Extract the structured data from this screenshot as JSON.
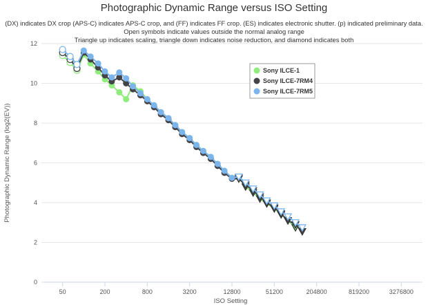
{
  "chart_data": {
    "type": "line",
    "title": "Photographic Dynamic Range versus ISO Setting",
    "subtitle": [
      "(DX) indicates DX crop (APS-C) indicates APS-C crop, and (FF) indicates FF crop. (ES) indicates electronic shutter. (p) indicated preliminary data.",
      "Open symbols indicate values outside the normal analog range",
      "Triangle up indicates scaling, triangle down indicates noise reduction, and diamond indicates both"
    ],
    "xlabel": "ISO Setting",
    "ylabel": "Photographic Dynamic Range (log2(EV))",
    "x_scale": "log2",
    "x_ticks": [
      50,
      200,
      800,
      3200,
      12800,
      51200,
      204800,
      819200,
      3276800
    ],
    "xlim": [
      25,
      6553600
    ],
    "ylim": [
      0,
      12
    ],
    "y_ticks": [
      0,
      2,
      4,
      6,
      8,
      10,
      12
    ],
    "grid": "horizontal",
    "legend_position": "top-right",
    "series": [
      {
        "name": "Sony ILCE-1",
        "color": "#90ed7d",
        "points": [
          {
            "x": 50,
            "y": 11.4,
            "marker": "circle-open"
          },
          {
            "x": 64,
            "y": 11.05,
            "marker": "circle-open"
          },
          {
            "x": 80,
            "y": 10.65,
            "marker": "circle-open"
          },
          {
            "x": 100,
            "y": 11.45,
            "marker": "circle"
          },
          {
            "x": 125,
            "y": 11.0,
            "marker": "circle"
          },
          {
            "x": 160,
            "y": 10.6,
            "marker": "circle"
          },
          {
            "x": 200,
            "y": 10.2,
            "marker": "circle"
          },
          {
            "x": 250,
            "y": 9.9,
            "marker": "circle"
          },
          {
            "x": 320,
            "y": 9.55,
            "marker": "circle"
          },
          {
            "x": 400,
            "y": 9.2,
            "marker": "circle"
          },
          {
            "x": 500,
            "y": 9.9,
            "marker": "circle"
          },
          {
            "x": 640,
            "y": 9.6,
            "marker": "circle"
          },
          {
            "x": 800,
            "y": 9.2,
            "marker": "circle"
          },
          {
            "x": 1000,
            "y": 8.85,
            "marker": "circle"
          },
          {
            "x": 1250,
            "y": 8.55,
            "marker": "circle"
          },
          {
            "x": 1600,
            "y": 8.2,
            "marker": "circle"
          },
          {
            "x": 2000,
            "y": 7.9,
            "marker": "circle"
          },
          {
            "x": 2500,
            "y": 7.55,
            "marker": "circle"
          },
          {
            "x": 3200,
            "y": 7.25,
            "marker": "circle"
          },
          {
            "x": 4000,
            "y": 6.9,
            "marker": "circle"
          },
          {
            "x": 5000,
            "y": 6.6,
            "marker": "circle"
          },
          {
            "x": 6400,
            "y": 6.3,
            "marker": "circle"
          },
          {
            "x": 8000,
            "y": 5.95,
            "marker": "circle"
          },
          {
            "x": 10000,
            "y": 5.6,
            "marker": "circle"
          },
          {
            "x": 12800,
            "y": 5.25,
            "marker": "circle"
          },
          {
            "x": 16000,
            "y": 5.25,
            "marker": "triangle-down"
          },
          {
            "x": 20000,
            "y": 4.8,
            "marker": "triangle-down"
          },
          {
            "x": 25600,
            "y": 4.5,
            "marker": "triangle-down"
          },
          {
            "x": 32000,
            "y": 4.2,
            "marker": "triangle-down"
          },
          {
            "x": 40000,
            "y": 3.95,
            "marker": "triangle-down"
          },
          {
            "x": 51200,
            "y": 3.7,
            "marker": "triangle-down"
          },
          {
            "x": 64000,
            "y": 3.4,
            "marker": "triangle-down"
          },
          {
            "x": 80000,
            "y": 3.1,
            "marker": "triangle-down"
          },
          {
            "x": 102400,
            "y": 2.75,
            "marker": "triangle-down"
          }
        ]
      },
      {
        "name": "Sony ILCE-7RM4",
        "color": "#434348",
        "points": [
          {
            "x": 50,
            "y": 11.55,
            "marker": "circle-open"
          },
          {
            "x": 64,
            "y": 11.2,
            "marker": "circle-open"
          },
          {
            "x": 80,
            "y": 10.75,
            "marker": "circle-open"
          },
          {
            "x": 100,
            "y": 11.55,
            "marker": "circle"
          },
          {
            "x": 125,
            "y": 11.2,
            "marker": "circle"
          },
          {
            "x": 160,
            "y": 10.8,
            "marker": "circle"
          },
          {
            "x": 200,
            "y": 10.4,
            "marker": "circle"
          },
          {
            "x": 250,
            "y": 10.1,
            "marker": "circle"
          },
          {
            "x": 320,
            "y": 10.3,
            "marker": "circle"
          },
          {
            "x": 400,
            "y": 10.0,
            "marker": "circle"
          },
          {
            "x": 500,
            "y": 9.7,
            "marker": "circle"
          },
          {
            "x": 640,
            "y": 9.4,
            "marker": "circle"
          },
          {
            "x": 800,
            "y": 9.1,
            "marker": "circle"
          },
          {
            "x": 1000,
            "y": 8.8,
            "marker": "circle"
          },
          {
            "x": 1250,
            "y": 8.45,
            "marker": "circle"
          },
          {
            "x": 1600,
            "y": 8.15,
            "marker": "circle"
          },
          {
            "x": 2000,
            "y": 7.8,
            "marker": "circle"
          },
          {
            "x": 2500,
            "y": 7.45,
            "marker": "circle"
          },
          {
            "x": 3200,
            "y": 7.15,
            "marker": "circle"
          },
          {
            "x": 4000,
            "y": 6.8,
            "marker": "circle"
          },
          {
            "x": 5000,
            "y": 6.5,
            "marker": "circle"
          },
          {
            "x": 6400,
            "y": 6.2,
            "marker": "circle"
          },
          {
            "x": 8000,
            "y": 5.85,
            "marker": "circle"
          },
          {
            "x": 10000,
            "y": 5.5,
            "marker": "circle"
          },
          {
            "x": 12800,
            "y": 5.2,
            "marker": "circle"
          },
          {
            "x": 16000,
            "y": 5.2,
            "marker": "triangle-down"
          },
          {
            "x": 20000,
            "y": 4.9,
            "marker": "triangle-down"
          },
          {
            "x": 25600,
            "y": 4.6,
            "marker": "triangle-down"
          },
          {
            "x": 32000,
            "y": 4.3,
            "marker": "triangle-down"
          },
          {
            "x": 40000,
            "y": 4.0,
            "marker": "triangle-down"
          },
          {
            "x": 51200,
            "y": 3.75,
            "marker": "triangle-down"
          },
          {
            "x": 64000,
            "y": 3.45,
            "marker": "triangle-down"
          },
          {
            "x": 80000,
            "y": 3.1,
            "marker": "triangle-down"
          },
          {
            "x": 102400,
            "y": 2.9,
            "marker": "triangle-down"
          },
          {
            "x": 128000,
            "y": 2.55,
            "marker": "triangle-down"
          }
        ]
      },
      {
        "name": "Sony ILCE-7RM5",
        "color": "#7cb5ec",
        "points": [
          {
            "x": 50,
            "y": 11.7,
            "marker": "circle-open"
          },
          {
            "x": 64,
            "y": 11.35,
            "marker": "circle-open"
          },
          {
            "x": 80,
            "y": 10.95,
            "marker": "circle-open"
          },
          {
            "x": 100,
            "y": 11.65,
            "marker": "circle"
          },
          {
            "x": 125,
            "y": 11.35,
            "marker": "circle"
          },
          {
            "x": 160,
            "y": 11.0,
            "marker": "circle"
          },
          {
            "x": 200,
            "y": 10.6,
            "marker": "circle"
          },
          {
            "x": 250,
            "y": 10.3,
            "marker": "circle"
          },
          {
            "x": 320,
            "y": 10.55,
            "marker": "circle"
          },
          {
            "x": 400,
            "y": 10.25,
            "marker": "circle"
          },
          {
            "x": 500,
            "y": 9.85,
            "marker": "circle"
          },
          {
            "x": 640,
            "y": 9.5,
            "marker": "circle"
          },
          {
            "x": 800,
            "y": 9.2,
            "marker": "circle"
          },
          {
            "x": 1000,
            "y": 8.9,
            "marker": "circle"
          },
          {
            "x": 1250,
            "y": 8.55,
            "marker": "circle"
          },
          {
            "x": 1600,
            "y": 8.25,
            "marker": "circle"
          },
          {
            "x": 2000,
            "y": 7.9,
            "marker": "circle"
          },
          {
            "x": 2500,
            "y": 7.55,
            "marker": "circle"
          },
          {
            "x": 3200,
            "y": 7.25,
            "marker": "circle"
          },
          {
            "x": 4000,
            "y": 6.9,
            "marker": "circle"
          },
          {
            "x": 5000,
            "y": 6.6,
            "marker": "circle"
          },
          {
            "x": 6400,
            "y": 6.3,
            "marker": "circle"
          },
          {
            "x": 8000,
            "y": 5.95,
            "marker": "circle"
          },
          {
            "x": 10000,
            "y": 5.6,
            "marker": "circle"
          },
          {
            "x": 12800,
            "y": 5.25,
            "marker": "circle"
          },
          {
            "x": 16000,
            "y": 5.3,
            "marker": "triangle-down-open"
          },
          {
            "x": 20000,
            "y": 5.0,
            "marker": "triangle-down-open"
          },
          {
            "x": 25600,
            "y": 4.7,
            "marker": "triangle-down-open"
          },
          {
            "x": 32000,
            "y": 4.4,
            "marker": "triangle-down-open"
          },
          {
            "x": 40000,
            "y": 4.1,
            "marker": "triangle-down-open"
          },
          {
            "x": 51200,
            "y": 3.85,
            "marker": "triangle-down-open"
          },
          {
            "x": 64000,
            "y": 3.55,
            "marker": "triangle-down-open"
          },
          {
            "x": 80000,
            "y": 3.3,
            "marker": "triangle-down-open"
          },
          {
            "x": 102400,
            "y": 3.0,
            "marker": "triangle-down-open"
          },
          {
            "x": 128000,
            "y": 2.75,
            "marker": "triangle-down-open"
          }
        ]
      }
    ]
  }
}
